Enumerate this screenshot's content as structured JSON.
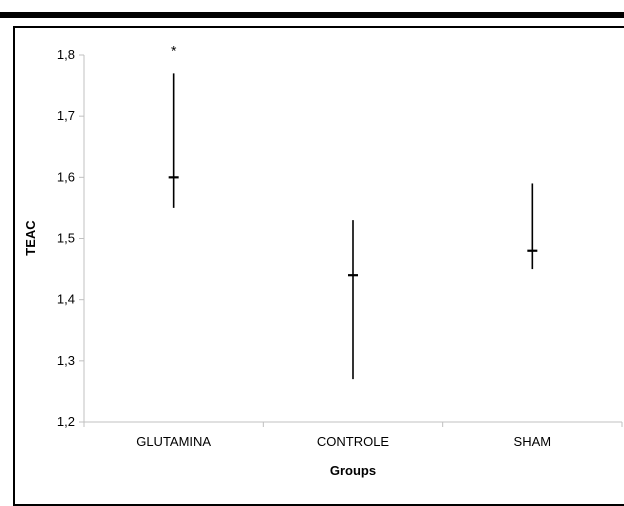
{
  "chart_data": {
    "type": "scatter",
    "subtype": "error-bars",
    "title": "",
    "xlabel": "Groups",
    "ylabel": "TEAC",
    "categories": [
      "GLUTAMINA",
      "CONTROLE",
      "SHAM"
    ],
    "series": [
      {
        "values": [
          1.6,
          1.44,
          1.48
        ],
        "lower": [
          1.55,
          1.27,
          1.45
        ],
        "upper": [
          1.77,
          1.53,
          1.59
        ]
      }
    ],
    "annotations": [
      {
        "category": "GLUTAMINA",
        "text": "*"
      }
    ],
    "ylim": [
      1.2,
      1.8
    ],
    "yticks": [
      "1,2",
      "1,3",
      "1,4",
      "1,5",
      "1,6",
      "1,7",
      "1,8"
    ],
    "grid": false,
    "legend": "none",
    "colors": {
      "marks": "#000000",
      "axis": "#c0c0c0",
      "frame": "#000000"
    }
  }
}
